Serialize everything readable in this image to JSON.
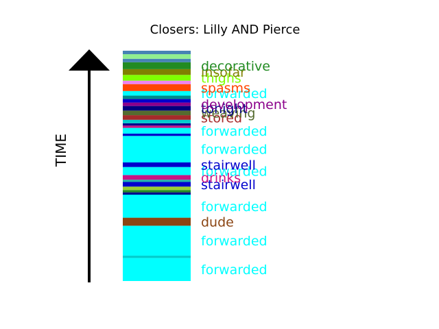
{
  "chart_data": {
    "type": "bar",
    "title": "Closers: Lilly AND Pierce",
    "ylabel": "TIME",
    "ylim": [
      0,
      100
    ],
    "grid": false,
    "legend": "none",
    "segments": [
      {
        "start": 0.0,
        "end": 10.0,
        "color": "#00ffff",
        "label": "forwarded"
      },
      {
        "start": 10.0,
        "end": 11.0,
        "color": "#00cdcd",
        "label": ""
      },
      {
        "start": 11.0,
        "end": 24.0,
        "color": "#00ffff",
        "label": "forwarded"
      },
      {
        "start": 24.0,
        "end": 27.5,
        "color": "#8b4513",
        "label": "dude"
      },
      {
        "start": 27.5,
        "end": 37.5,
        "color": "#00ffff",
        "label": "forwarded"
      },
      {
        "start": 37.5,
        "end": 38.5,
        "color": "#00008b",
        "label": ""
      },
      {
        "start": 38.5,
        "end": 39.5,
        "color": "#228b22",
        "label": ""
      },
      {
        "start": 39.5,
        "end": 41.0,
        "color": "#9acd32",
        "label": ""
      },
      {
        "start": 41.0,
        "end": 43.0,
        "color": "#0000cd",
        "label": "stairwell"
      },
      {
        "start": 43.0,
        "end": 44.0,
        "color": "#20b2aa",
        "label": ""
      },
      {
        "start": 44.0,
        "end": 46.0,
        "color": "#c71585",
        "label": "drinks"
      },
      {
        "start": 46.0,
        "end": 49.5,
        "color": "#00ffff",
        "label": "forwarded"
      },
      {
        "start": 49.5,
        "end": 51.5,
        "color": "#0000cd",
        "label": "stairwell"
      },
      {
        "start": 51.5,
        "end": 63.0,
        "color": "#00ffff",
        "label": "forwarded"
      },
      {
        "start": 63.0,
        "end": 64.0,
        "color": "#0000cd",
        "label": ""
      },
      {
        "start": 64.0,
        "end": 66.5,
        "color": "#00ffff",
        "label": "forwarded"
      },
      {
        "start": 66.5,
        "end": 67.5,
        "color": "#c71585",
        "label": ""
      },
      {
        "start": 67.5,
        "end": 68.5,
        "color": "#00008b",
        "label": ""
      },
      {
        "start": 68.5,
        "end": 70.0,
        "color": "#00cdcd",
        "label": ""
      },
      {
        "start": 70.0,
        "end": 72.0,
        "color": "#a52a2a",
        "label": "stored"
      },
      {
        "start": 72.0,
        "end": 74.0,
        "color": "#556b2f",
        "label": "weaving"
      },
      {
        "start": 74.0,
        "end": 76.0,
        "color": "#000080",
        "label": "tonight"
      },
      {
        "start": 76.0,
        "end": 77.5,
        "color": "#8b008b",
        "label": "development"
      },
      {
        "start": 77.5,
        "end": 79.0,
        "color": "#0000cd",
        "label": ""
      },
      {
        "start": 79.0,
        "end": 80.5,
        "color": "#008b8b",
        "label": ""
      },
      {
        "start": 80.5,
        "end": 82.5,
        "color": "#00ffff",
        "label": "forwarded"
      },
      {
        "start": 82.5,
        "end": 85.5,
        "color": "#ff4500",
        "label": "spasms"
      },
      {
        "start": 85.5,
        "end": 87.0,
        "color": "#ee82ee",
        "label": ""
      },
      {
        "start": 87.0,
        "end": 89.5,
        "color": "#7fff00",
        "label": "thighs"
      },
      {
        "start": 89.5,
        "end": 92.0,
        "color": "#808000",
        "label": "insofar"
      },
      {
        "start": 92.0,
        "end": 95.0,
        "color": "#228b22",
        "label": "decorative"
      },
      {
        "start": 95.0,
        "end": 96.5,
        "color": "#4682b4",
        "label": ""
      },
      {
        "start": 96.5,
        "end": 98.5,
        "color": "#90ee90",
        "label": ""
      },
      {
        "start": 98.5,
        "end": 100.0,
        "color": "#4682b4",
        "label": ""
      }
    ]
  }
}
